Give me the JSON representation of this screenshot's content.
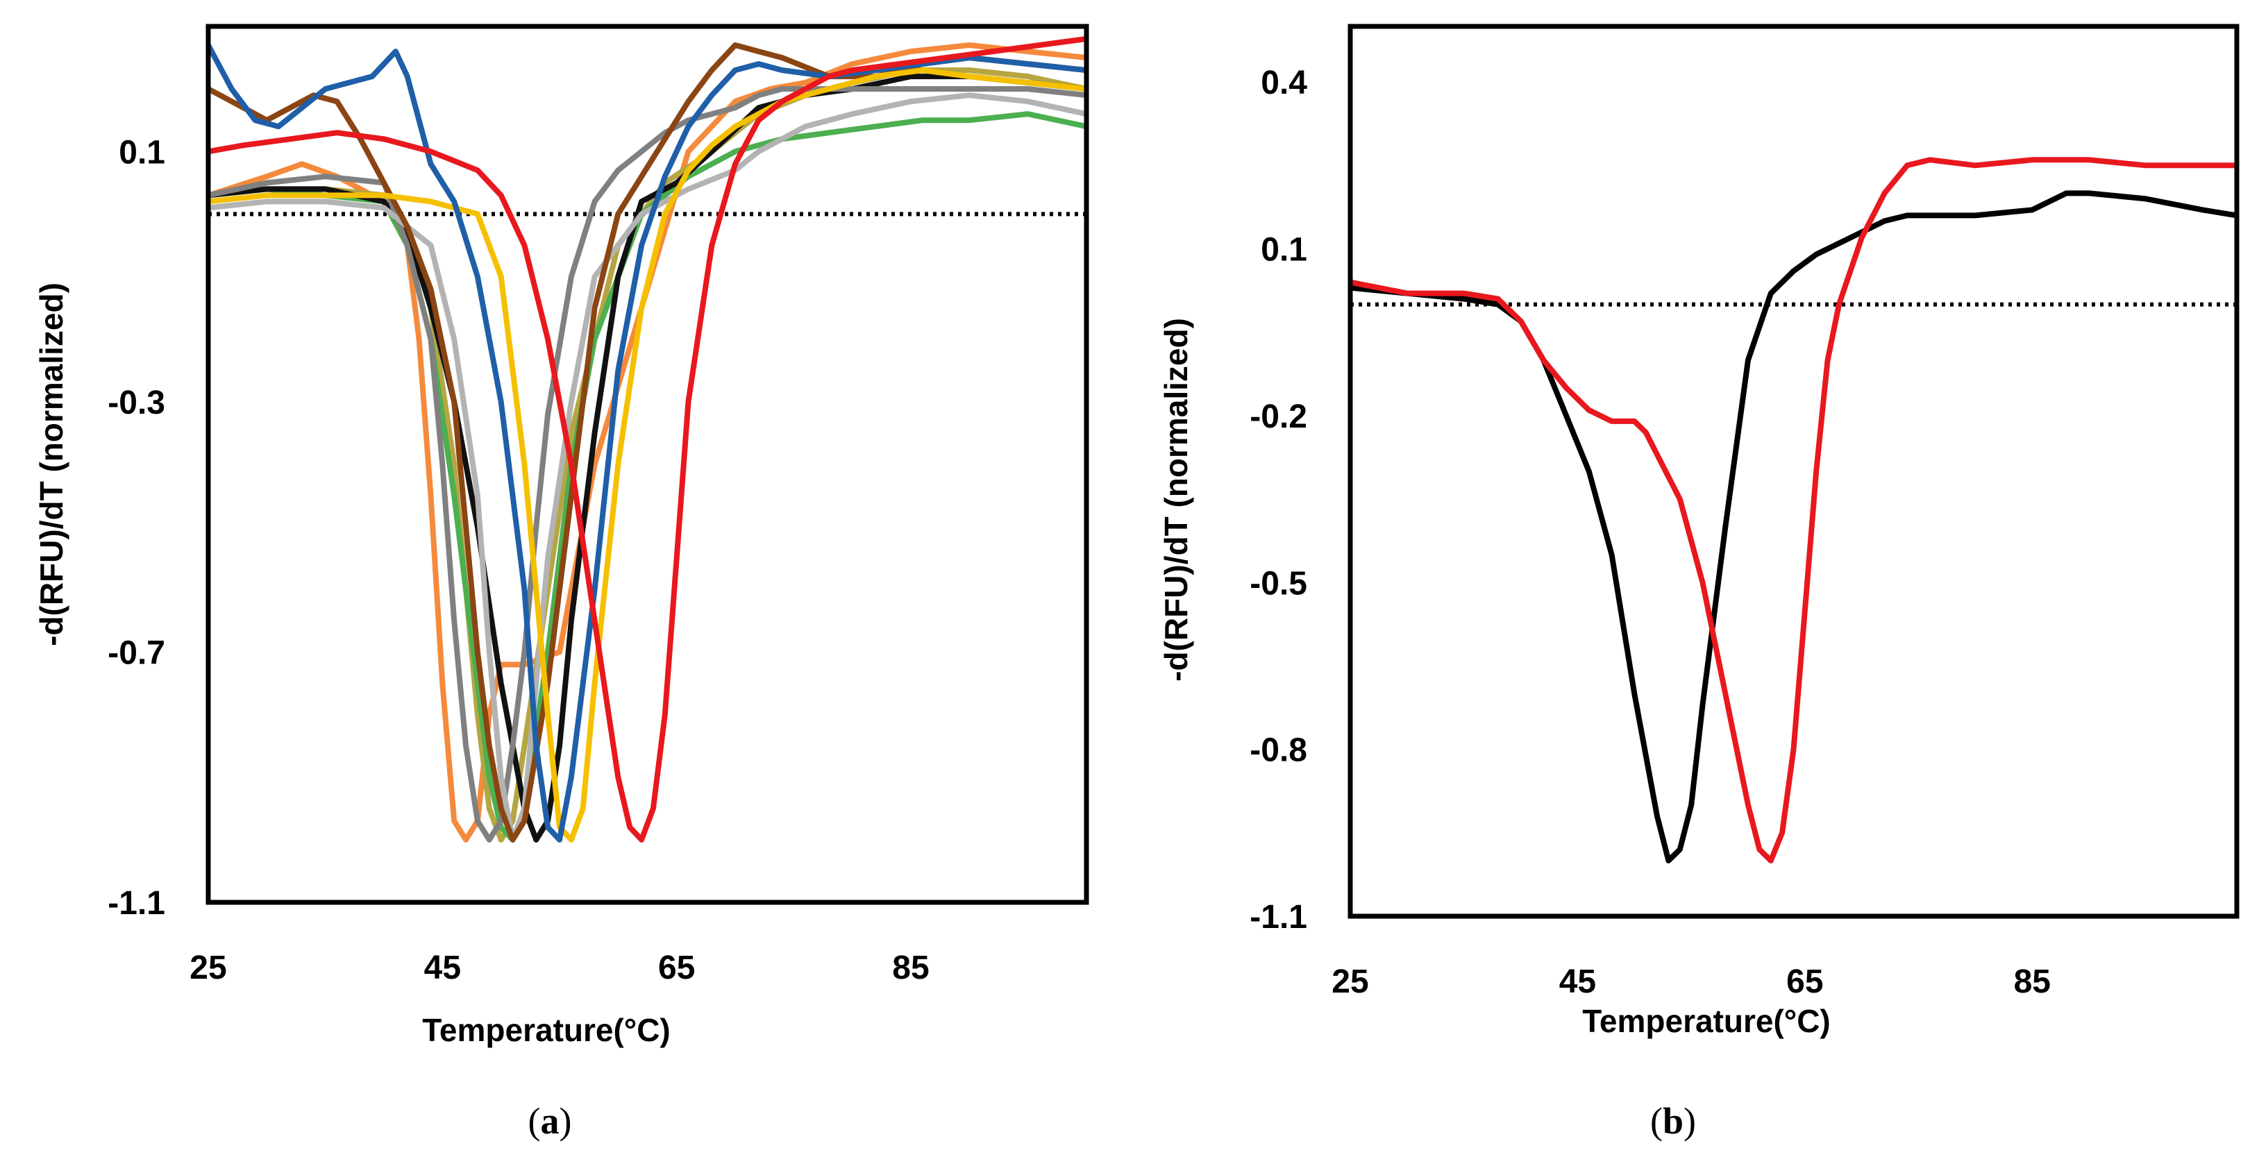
{
  "panels": [
    {
      "id": "a",
      "caption_open": "(",
      "caption_letter": "a",
      "caption_close": ")"
    },
    {
      "id": "b",
      "caption_open": "(",
      "caption_letter": "b",
      "caption_close": ")"
    }
  ],
  "chart_data": [
    {
      "type": "line",
      "panel": "a",
      "title": "",
      "xlabel": "Temperature(°C)",
      "ylabel": "-d(RFU)/dT (normalized)",
      "xlim": [
        25,
        100
      ],
      "ylim": [
        -1.1,
        0.3
      ],
      "xticks": [
        25,
        45,
        65,
        85
      ],
      "xtick_labels": [
        "25",
        "45",
        "65",
        "85"
      ],
      "yticks": [
        0.1,
        -0.3,
        -0.7,
        -1.1
      ],
      "ytick_labels": [
        "0.1",
        "-0.3",
        "-0.7",
        "-1.1"
      ],
      "reference_line": {
        "y": 0.0,
        "style": "dotted"
      },
      "grid": false,
      "series": [
        {
          "name": "orange",
          "color": "#F58A3C",
          "x": [
            25,
            30,
            33,
            36,
            40,
            42,
            43,
            44,
            45,
            46,
            47,
            48,
            49,
            50,
            52,
            55,
            58,
            62,
            66,
            70,
            73,
            76,
            80,
            85,
            90,
            95,
            100
          ],
          "y": [
            0.03,
            0.06,
            0.08,
            0.06,
            0.02,
            -0.05,
            -0.2,
            -0.45,
            -0.75,
            -0.97,
            -1.0,
            -0.97,
            -0.8,
            -0.72,
            -0.72,
            -0.7,
            -0.4,
            -0.15,
            0.1,
            0.18,
            0.2,
            0.21,
            0.24,
            0.26,
            0.27,
            0.26,
            0.25
          ]
        },
        {
          "name": "olive",
          "color": "#B5A642",
          "x": [
            25,
            30,
            35,
            40,
            42,
            44,
            46,
            47,
            48,
            49,
            50,
            51,
            52,
            54,
            56,
            60,
            64,
            68,
            72,
            76,
            80,
            85,
            90,
            95,
            100
          ],
          "y": [
            0.03,
            0.04,
            0.04,
            0.03,
            -0.02,
            -0.15,
            -0.4,
            -0.6,
            -0.8,
            -0.95,
            -1.0,
            -0.97,
            -0.85,
            -0.6,
            -0.35,
            -0.05,
            0.05,
            0.1,
            0.16,
            0.19,
            0.21,
            0.23,
            0.23,
            0.22,
            0.2
          ]
        },
        {
          "name": "green",
          "color": "#4CAF50",
          "x": [
            25,
            30,
            35,
            40,
            42,
            44,
            46,
            48,
            49,
            50,
            51,
            52,
            54,
            56,
            58,
            62,
            66,
            70,
            74,
            78,
            82,
            86,
            90,
            95,
            100
          ],
          "y": [
            0.03,
            0.04,
            0.03,
            0.02,
            -0.05,
            -0.2,
            -0.45,
            -0.75,
            -0.9,
            -0.98,
            -1.0,
            -0.95,
            -0.7,
            -0.4,
            -0.2,
            0.0,
            0.06,
            0.1,
            0.12,
            0.13,
            0.14,
            0.15,
            0.15,
            0.16,
            0.14
          ]
        },
        {
          "name": "black",
          "color": "#111111",
          "x": [
            25,
            30,
            35,
            40,
            42,
            44,
            46,
            48,
            50,
            52,
            53,
            54,
            55,
            56,
            58,
            60,
            62,
            65,
            68,
            72,
            76,
            80,
            85,
            90,
            95,
            100
          ],
          "y": [
            0.03,
            0.04,
            0.04,
            0.02,
            -0.03,
            -0.15,
            -0.3,
            -0.5,
            -0.75,
            -0.95,
            -1.0,
            -0.97,
            -0.85,
            -0.65,
            -0.35,
            -0.1,
            0.02,
            0.05,
            0.1,
            0.17,
            0.19,
            0.2,
            0.22,
            0.22,
            0.21,
            0.2
          ]
        },
        {
          "name": "gray",
          "color": "#808080",
          "x": [
            25,
            30,
            35,
            40,
            42,
            44,
            45,
            46,
            47,
            48,
            49,
            50,
            51,
            52,
            53,
            54,
            56,
            58,
            60,
            62,
            64,
            66,
            68,
            70,
            72,
            74,
            78,
            82,
            86,
            90,
            95,
            100
          ],
          "y": [
            0.03,
            0.05,
            0.06,
            0.05,
            -0.05,
            -0.2,
            -0.4,
            -0.65,
            -0.85,
            -0.97,
            -1.0,
            -0.97,
            -0.85,
            -0.7,
            -0.5,
            -0.32,
            -0.1,
            0.02,
            0.07,
            0.1,
            0.13,
            0.15,
            0.16,
            0.17,
            0.19,
            0.2,
            0.2,
            0.2,
            0.2,
            0.2,
            0.2,
            0.19
          ]
        },
        {
          "name": "light-gray",
          "color": "#B3B3B3",
          "x": [
            25,
            30,
            35,
            40,
            44,
            46,
            48,
            49,
            50,
            51,
            52,
            53,
            54,
            56,
            58,
            62,
            66,
            70,
            72,
            76,
            80,
            85,
            90,
            95,
            100
          ],
          "y": [
            0.01,
            0.02,
            0.02,
            0.01,
            -0.05,
            -0.2,
            -0.45,
            -0.7,
            -0.9,
            -1.0,
            -0.95,
            -0.75,
            -0.55,
            -0.3,
            -0.1,
            0.0,
            0.04,
            0.07,
            0.1,
            0.14,
            0.16,
            0.18,
            0.19,
            0.18,
            0.16
          ]
        },
        {
          "name": "brown",
          "color": "#8B4513",
          "x": [
            25,
            28,
            30,
            32,
            34,
            36,
            38,
            40,
            42,
            44,
            46,
            47,
            48,
            49,
            50,
            51,
            52,
            54,
            56,
            58,
            60,
            62,
            64,
            66,
            68,
            70,
            72,
            74,
            78,
            82,
            86,
            90,
            95,
            100
          ],
          "y": [
            0.2,
            0.17,
            0.15,
            0.17,
            0.19,
            0.18,
            0.12,
            0.05,
            -0.02,
            -0.12,
            -0.3,
            -0.5,
            -0.7,
            -0.85,
            -0.95,
            -1.0,
            -0.97,
            -0.75,
            -0.45,
            -0.15,
            0.0,
            0.06,
            0.12,
            0.18,
            0.23,
            0.27,
            0.26,
            0.25,
            0.22,
            0.22,
            0.24,
            0.25,
            0.24,
            0.23
          ]
        },
        {
          "name": "yellow",
          "color": "#F5C000",
          "x": [
            25,
            30,
            35,
            40,
            44,
            48,
            50,
            52,
            54,
            55,
            56,
            57,
            58,
            60,
            62,
            64,
            66,
            68,
            70,
            74,
            78,
            82,
            86,
            90,
            95,
            100
          ],
          "y": [
            0.02,
            0.03,
            0.03,
            0.03,
            0.02,
            0.0,
            -0.1,
            -0.4,
            -0.8,
            -0.98,
            -1.0,
            -0.95,
            -0.75,
            -0.4,
            -0.15,
            0.0,
            0.07,
            0.11,
            0.14,
            0.18,
            0.2,
            0.22,
            0.23,
            0.22,
            0.21,
            0.2
          ]
        },
        {
          "name": "blue",
          "color": "#1F5FA8",
          "x": [
            25,
            27,
            29,
            31,
            33,
            35,
            37,
            39,
            41,
            42,
            43,
            44,
            46,
            48,
            50,
            52,
            53,
            54,
            55,
            56,
            58,
            60,
            62,
            64,
            66,
            68,
            70,
            72,
            74,
            78,
            82,
            86,
            90,
            95,
            100
          ],
          "y": [
            0.27,
            0.2,
            0.15,
            0.14,
            0.17,
            0.2,
            0.21,
            0.22,
            0.26,
            0.22,
            0.15,
            0.08,
            0.02,
            -0.1,
            -0.3,
            -0.6,
            -0.85,
            -0.98,
            -1.0,
            -0.9,
            -0.6,
            -0.25,
            -0.05,
            0.06,
            0.14,
            0.19,
            0.23,
            0.24,
            0.23,
            0.22,
            0.23,
            0.24,
            0.25,
            0.24,
            0.23
          ]
        },
        {
          "name": "red",
          "color": "#E8181E",
          "x": [
            25,
            28,
            32,
            36,
            40,
            44,
            48,
            50,
            52,
            54,
            56,
            58,
            60,
            61,
            62,
            63,
            64,
            65,
            66,
            68,
            70,
            72,
            74,
            76,
            78,
            80,
            84,
            88,
            92,
            96,
            100
          ],
          "y": [
            0.1,
            0.11,
            0.12,
            0.13,
            0.12,
            0.1,
            0.07,
            0.03,
            -0.05,
            -0.2,
            -0.4,
            -0.65,
            -0.9,
            -0.98,
            -1.0,
            -0.95,
            -0.8,
            -0.55,
            -0.3,
            -0.05,
            0.08,
            0.15,
            0.18,
            0.2,
            0.22,
            0.23,
            0.24,
            0.25,
            0.26,
            0.27,
            0.28
          ]
        }
      ]
    },
    {
      "type": "line",
      "panel": "b",
      "title": "",
      "xlabel": "Temperature(°C)",
      "ylabel": "-d(RFU)/dT (normalized)",
      "xlim": [
        25,
        103
      ],
      "ylim": [
        -1.1,
        0.5
      ],
      "xticks": [
        25,
        45,
        65,
        85
      ],
      "xtick_labels": [
        "25",
        "45",
        "65",
        "85"
      ],
      "yticks": [
        0.4,
        0.1,
        -0.2,
        -0.5,
        -0.8,
        -1.1
      ],
      "ytick_labels": [
        "0.4",
        "0.1",
        "-0.2",
        "-0.5",
        "-0.8",
        "-1.1"
      ],
      "reference_line": {
        "y": 0.0,
        "style": "dotted"
      },
      "grid": false,
      "series": [
        {
          "name": "black",
          "color": "#000000",
          "x": [
            25,
            30,
            35,
            38,
            40,
            42,
            44,
            46,
            48,
            50,
            52,
            53,
            54,
            55,
            56,
            58,
            60,
            62,
            64,
            66,
            68,
            70,
            72,
            74,
            80,
            85,
            88,
            90,
            95,
            100,
            103
          ],
          "y": [
            0.03,
            0.02,
            0.01,
            0.0,
            -0.03,
            -0.1,
            -0.2,
            -0.3,
            -0.45,
            -0.7,
            -0.92,
            -1.0,
            -0.98,
            -0.9,
            -0.72,
            -0.4,
            -0.1,
            0.02,
            0.06,
            0.09,
            0.11,
            0.13,
            0.15,
            0.16,
            0.16,
            0.17,
            0.2,
            0.2,
            0.19,
            0.17,
            0.16
          ]
        },
        {
          "name": "red",
          "color": "#E8181E",
          "x": [
            25,
            30,
            35,
            38,
            40,
            42,
            44,
            46,
            48,
            50,
            51,
            52,
            54,
            56,
            58,
            60,
            61,
            62,
            63,
            64,
            65,
            66,
            67,
            68,
            70,
            72,
            74,
            76,
            80,
            85,
            90,
            95,
            100,
            103
          ],
          "y": [
            0.04,
            0.02,
            0.02,
            0.01,
            -0.03,
            -0.1,
            -0.15,
            -0.19,
            -0.21,
            -0.21,
            -0.23,
            -0.27,
            -0.35,
            -0.5,
            -0.7,
            -0.9,
            -0.98,
            -1.0,
            -0.95,
            -0.8,
            -0.55,
            -0.3,
            -0.1,
            0.0,
            0.12,
            0.2,
            0.25,
            0.26,
            0.25,
            0.26,
            0.26,
            0.25,
            0.25,
            0.25
          ]
        }
      ]
    }
  ]
}
